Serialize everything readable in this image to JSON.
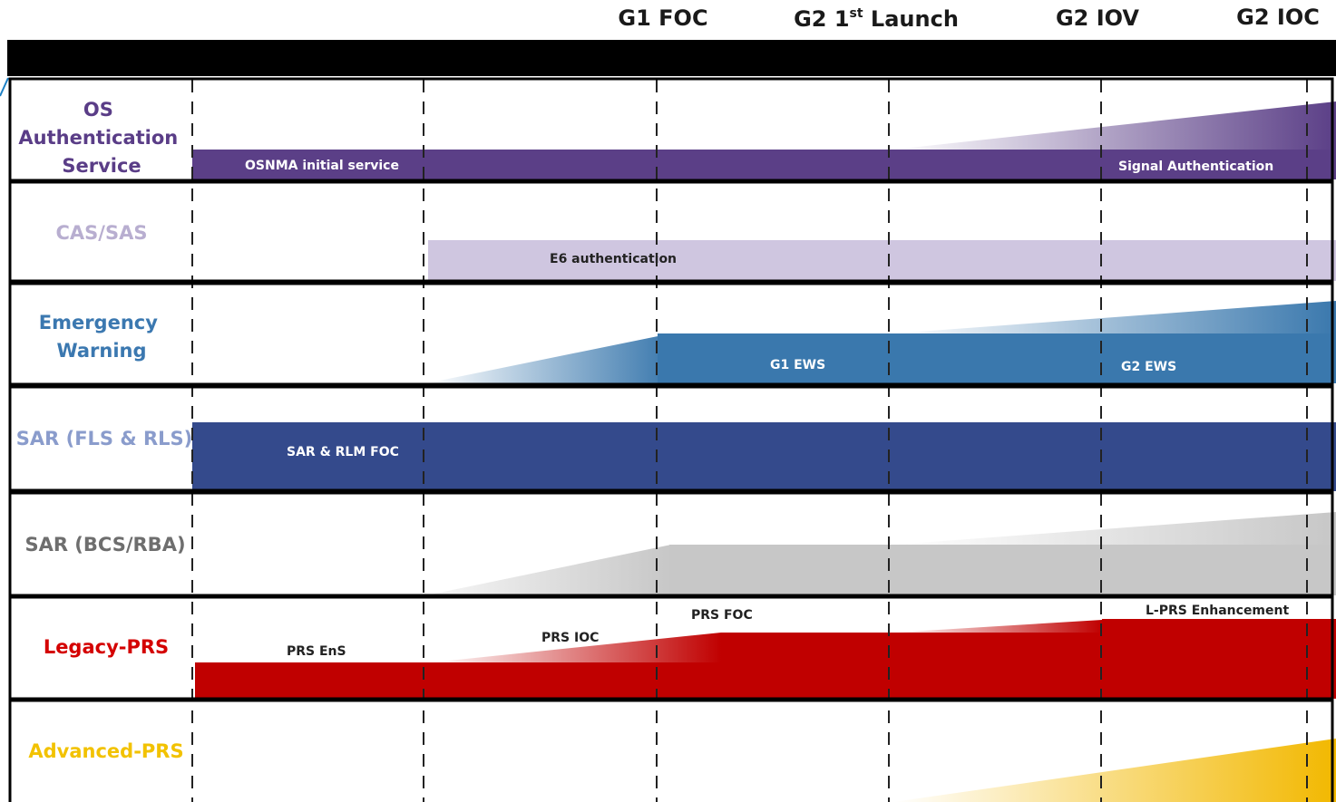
{
  "milestones": [
    {
      "name": "G1 FOC",
      "sup": ""
    },
    {
      "name": "G2 1",
      "sup": "st",
      "tail": " Launch"
    },
    {
      "name": "G2 IOV",
      "sup": ""
    },
    {
      "name": "G2 IOC",
      "sup": ""
    }
  ],
  "rows": [
    {
      "name": "OS Authentication Service",
      "lines": [
        "OS",
        "Authentication",
        "Service"
      ],
      "color": "#5a3d87",
      "bars": [
        {
          "label": "OSNMA initial service"
        },
        {
          "label": "Signal Authentication"
        }
      ]
    },
    {
      "name": "CAS/SAS",
      "lines": [
        "CAS/SAS"
      ],
      "color": "#b8aed0",
      "bars": [
        {
          "label": "E6 authentication"
        }
      ]
    },
    {
      "name": "Emergency Warning",
      "lines": [
        "Emergency",
        "Warning"
      ],
      "color": "#3b78b0",
      "bars": [
        {
          "label": "G1 EWS"
        },
        {
          "label": "G2 EWS"
        }
      ]
    },
    {
      "name": "SAR (FLS & RLS)",
      "lines": [
        "SAR (FLS & RLS)"
      ],
      "color": "#8a9ccc",
      "bars": [
        {
          "label": "SAR & RLM FOC"
        }
      ]
    },
    {
      "name": "SAR (BCS/RBA)",
      "lines": [
        "SAR (BCS/RBA)"
      ],
      "color": "#6e6e6e",
      "bars": []
    },
    {
      "name": "Legacy-PRS",
      "lines": [
        "Legacy-PRS"
      ],
      "color": "#d40000",
      "bars": [
        {
          "label": "PRS EnS"
        },
        {
          "label": "PRS IOC"
        },
        {
          "label": "PRS FOC"
        },
        {
          "label": "L-PRS Enhancement"
        }
      ]
    },
    {
      "name": "Advanced-PRS",
      "lines": [
        "Advanced-PRS"
      ],
      "color": "#f2c200",
      "bars": []
    }
  ],
  "colors": {
    "header_bar": "#000000",
    "osnma": "#5b3f87",
    "cas": "#cfc6e0",
    "ews": "#3a78ad",
    "sar_fls": "#344a8c",
    "sar_bcs": "#c7c7c7",
    "legacy_prs": "#c00000",
    "advanced_prs": "#f2b800"
  }
}
